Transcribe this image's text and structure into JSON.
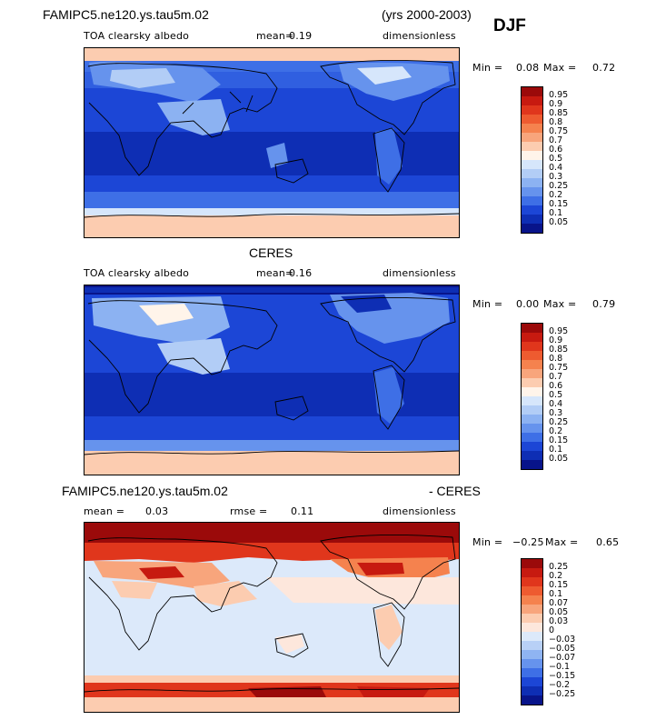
{
  "header": {
    "model_title": "FAMIPC5.ne120.ys.tau5m.02",
    "years": "(yrs 2000-2003)",
    "season": "DJF"
  },
  "panel1": {
    "variable": "TOA clearsky albedo",
    "mean_label": "mean=",
    "mean_value": "0.19",
    "units": "dimensionless",
    "min_label": "Min =",
    "min_value": "0.08",
    "max_label": "Max =",
    "max_value": "0.72",
    "levels": [
      "0.95",
      "0.9",
      "0.85",
      "0.8",
      "0.75",
      "0.7",
      "0.6",
      "0.5",
      "0.4",
      "0.3",
      "0.25",
      "0.2",
      "0.15",
      "0.1",
      "0.05"
    ],
    "colors": [
      "#9b0a0a",
      "#c71a10",
      "#e0361c",
      "#ee5b30",
      "#f5824e",
      "#f8a57c",
      "#fcccb0",
      "#fff4ea",
      "#d6e6fb",
      "#b2cdf6",
      "#8cb2f2",
      "#6693ed",
      "#3e6fe6",
      "#1c46d6",
      "#0e2eb4",
      "#08148a"
    ]
  },
  "panel2_title": "CERES",
  "panel2": {
    "variable": "TOA clearsky albedo",
    "mean_label": "mean=",
    "mean_value": "0.16",
    "units": "dimensionless",
    "min_label": "Min =",
    "min_value": "0.00",
    "max_label": "Max =",
    "max_value": "0.79",
    "levels": [
      "0.95",
      "0.9",
      "0.85",
      "0.8",
      "0.75",
      "0.7",
      "0.6",
      "0.5",
      "0.4",
      "0.3",
      "0.25",
      "0.2",
      "0.15",
      "0.1",
      "0.05"
    ],
    "colors": [
      "#9b0a0a",
      "#c71a10",
      "#e0361c",
      "#ee5b30",
      "#f5824e",
      "#f8a57c",
      "#fcccb0",
      "#fff4ea",
      "#d6e6fb",
      "#b2cdf6",
      "#8cb2f2",
      "#6693ed",
      "#3e6fe6",
      "#1c46d6",
      "#0e2eb4",
      "#08148a"
    ]
  },
  "panel3_title_left": "FAMIPC5.ne120.ys.tau5m.02",
  "panel3_title_right": "- CERES",
  "panel3": {
    "mean_label": "mean =",
    "mean_value": "0.03",
    "rmse_label": "rmse =",
    "rmse_value": "0.11",
    "units": "dimensionless",
    "min_label": "Min =",
    "min_value": "−0.25",
    "max_label": "Max =",
    "max_value": "0.65",
    "levels": [
      "0.25",
      "0.2",
      "0.15",
      "0.1",
      "0.07",
      "0.05",
      "0.03",
      "0",
      "−0.03",
      "−0.05",
      "−0.07",
      "−0.1",
      "−0.15",
      "−0.2",
      "−0.25"
    ],
    "colors": [
      "#9b0a0a",
      "#c71a10",
      "#e0361c",
      "#ee5b30",
      "#f5824e",
      "#f8a57c",
      "#fcccb0",
      "#fde7dc",
      "#dce9fa",
      "#b8d0f6",
      "#8fb4f2",
      "#6693ed",
      "#3e6fe6",
      "#1c46d6",
      "#0e2eb4",
      "#08148a"
    ]
  }
}
